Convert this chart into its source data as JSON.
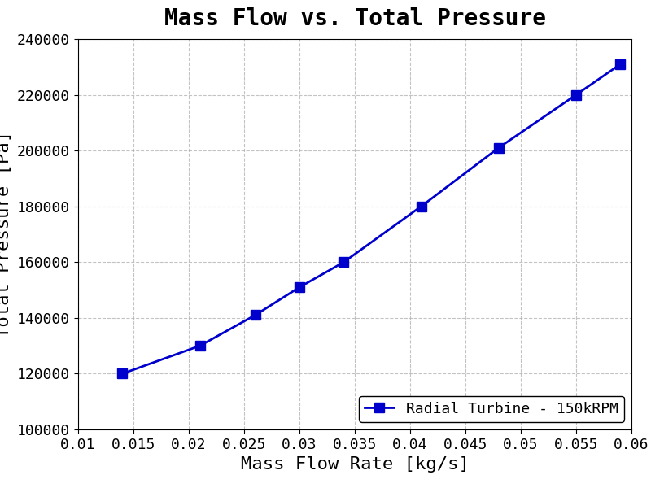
{
  "x": [
    0.014,
    0.021,
    0.026,
    0.03,
    0.034,
    0.041,
    0.048,
    0.055,
    0.059
  ],
  "y": [
    120000,
    130000,
    141000,
    151000,
    160000,
    180000,
    201000,
    220000,
    231000
  ],
  "title": "Mass Flow vs. Total Pressure",
  "xlabel": "Mass Flow Rate [kg/s]",
  "ylabel": "Total Pressure [Pa]",
  "xlim": [
    0.01,
    0.06
  ],
  "ylim": [
    100000,
    240000
  ],
  "xticks": [
    0.01,
    0.015,
    0.02,
    0.025,
    0.03,
    0.035,
    0.04,
    0.045,
    0.05,
    0.055,
    0.06
  ],
  "yticks": [
    100000,
    120000,
    140000,
    160000,
    180000,
    200000,
    220000,
    240000
  ],
  "line_color": "#0000cc",
  "marker": "s",
  "marker_size": 9,
  "linewidth": 2.0,
  "legend_label": "Radial Turbine - 150kRPM",
  "legend_loc": "lower right",
  "title_fontsize": 20,
  "label_fontsize": 16,
  "tick_fontsize": 13,
  "legend_fontsize": 13,
  "grid": true,
  "grid_style": "--",
  "grid_color": "#aaaaaa",
  "background_color": "#ffffff",
  "font_family": "monospace"
}
